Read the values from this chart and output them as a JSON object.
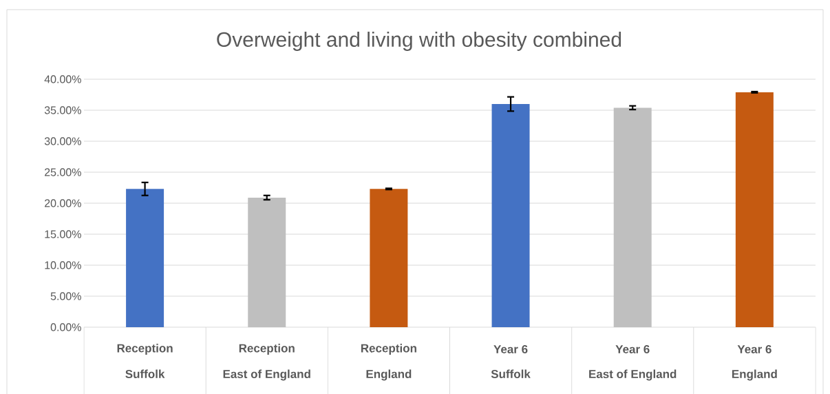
{
  "chart_data": {
    "type": "bar",
    "title": "Overweight and living with obesity combined",
    "categories": [
      "Suffolk",
      "East of England",
      "England",
      "Suffolk",
      "East of England",
      "England"
    ],
    "annotations": [
      "Reception",
      "Reception",
      "Reception",
      "Year 6",
      "Year 6",
      "Year 6"
    ],
    "values": [
      22.3,
      20.9,
      22.3,
      36.0,
      35.4,
      37.9
    ],
    "errors": [
      1.05,
      0.35,
      0.1,
      1.15,
      0.3,
      0.1
    ],
    "colors": [
      "#4472c4",
      "#bfbfbf",
      "#c55a11",
      "#4472c4",
      "#bfbfbf",
      "#c55a11"
    ],
    "ylim": [
      0,
      40
    ],
    "yticks": [
      {
        "value": 0,
        "label": "0.00%"
      },
      {
        "value": 5,
        "label": "5.00%"
      },
      {
        "value": 10,
        "label": "10.00%"
      },
      {
        "value": 15,
        "label": "15.00%"
      },
      {
        "value": 20,
        "label": "20.00%"
      },
      {
        "value": 25,
        "label": "25.00%"
      },
      {
        "value": 30,
        "label": "30.00%"
      },
      {
        "value": 35,
        "label": "35.00%"
      },
      {
        "value": 40,
        "label": "40.00%"
      }
    ],
    "grid": "y"
  }
}
